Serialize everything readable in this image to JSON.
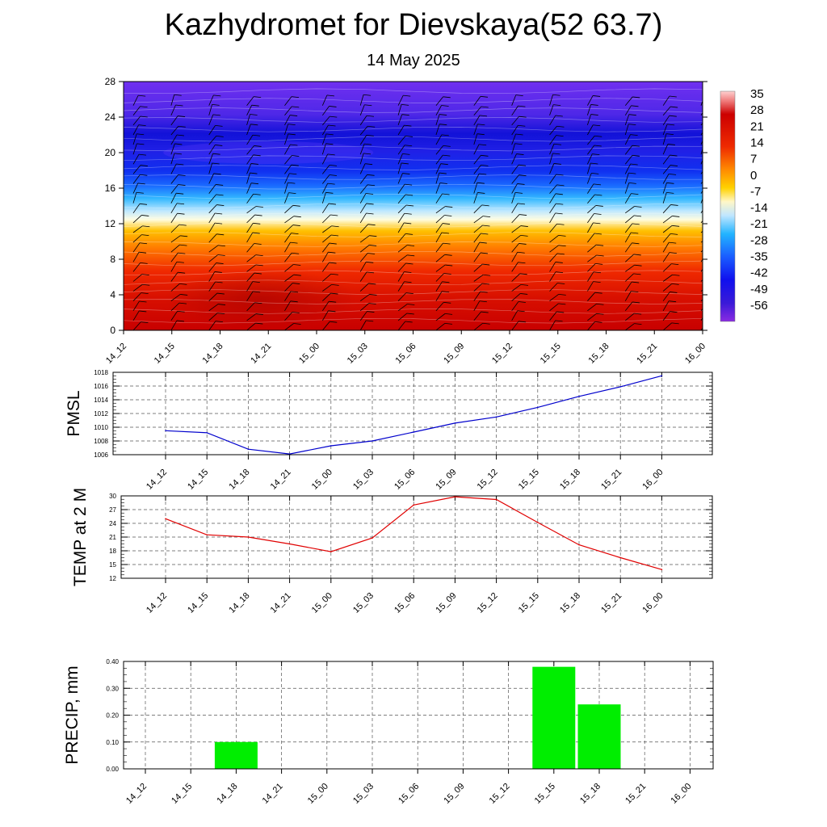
{
  "title": "Kazhydromet for Dievskaya(52 63.7)",
  "subtitle": "14 May 2025",
  "colors": {
    "pmsl_line": "#0000cc",
    "temp_line": "#e00000",
    "precip_bar": "#00ee00"
  },
  "chart_data": [
    {
      "type": "heatmap",
      "name": "upper-air-temperature",
      "x": [
        "14_12",
        "14_15",
        "14_18",
        "14_21",
        "15_00",
        "15_03",
        "15_06",
        "15_09",
        "15_12",
        "15_15",
        "15_18",
        "15_21",
        "16_00"
      ],
      "y_ticks": [
        0,
        4,
        8,
        12,
        16,
        20,
        24,
        28
      ],
      "ylim": [
        0,
        28
      ],
      "colorbar_labels": [
        "35",
        "28",
        "21",
        "14",
        "7",
        "0",
        "-7",
        "-14",
        "-21",
        "-28",
        "-35",
        "-42",
        "-49",
        "-56"
      ],
      "colorbar_range": [
        -63,
        40
      ],
      "overlay": "wind-barbs",
      "grid": false
    },
    {
      "type": "line",
      "name": "pmsl",
      "ylabel": "PMSL",
      "x": [
        "14_12",
        "14_15",
        "14_18",
        "14_21",
        "15_00",
        "15_03",
        "15_06",
        "15_09",
        "15_12",
        "15_15",
        "15_18",
        "15_21",
        "16_00"
      ],
      "values": [
        1009.5,
        1009.2,
        1006.8,
        1006.1,
        1007.3,
        1008.0,
        1009.3,
        1010.6,
        1011.5,
        1012.9,
        1014.5,
        1015.9,
        1017.5
      ],
      "y_ticks": [
        "1006",
        "1008",
        "1010",
        "1012",
        "1014",
        "1016",
        "1018"
      ],
      "ylim": [
        1006,
        1018
      ],
      "grid": true
    },
    {
      "type": "line",
      "name": "temp-2m",
      "ylabel": "TEMP at 2 M",
      "x": [
        "14_12",
        "14_15",
        "14_18",
        "14_21",
        "15_00",
        "15_03",
        "15_06",
        "15_09",
        "15_12",
        "15_15",
        "15_18",
        "15_21",
        "16_00"
      ],
      "values": [
        25.0,
        21.5,
        21.0,
        19.5,
        17.8,
        20.8,
        28.0,
        29.8,
        29.2,
        24.2,
        19.3,
        16.5,
        13.9
      ],
      "y_ticks": [
        "12",
        "15",
        "18",
        "21",
        "24",
        "27",
        "30"
      ],
      "ylim": [
        12,
        30
      ],
      "grid": true
    },
    {
      "type": "bar",
      "name": "precip",
      "ylabel": "PRECIP, mm",
      "x": [
        "14_12",
        "14_15",
        "14_18",
        "14_21",
        "15_00",
        "15_03",
        "15_06",
        "15_09",
        "15_12",
        "15_15",
        "15_18",
        "15_21",
        "16_00"
      ],
      "values": [
        0,
        0,
        0.1,
        0,
        0,
        0,
        0,
        0,
        0,
        0.38,
        0.24,
        0,
        0
      ],
      "y_ticks": [
        "0.00",
        "0.10",
        "0.20",
        "0.30",
        "0.40"
      ],
      "ylim": [
        0,
        0.4
      ],
      "grid": true
    }
  ]
}
